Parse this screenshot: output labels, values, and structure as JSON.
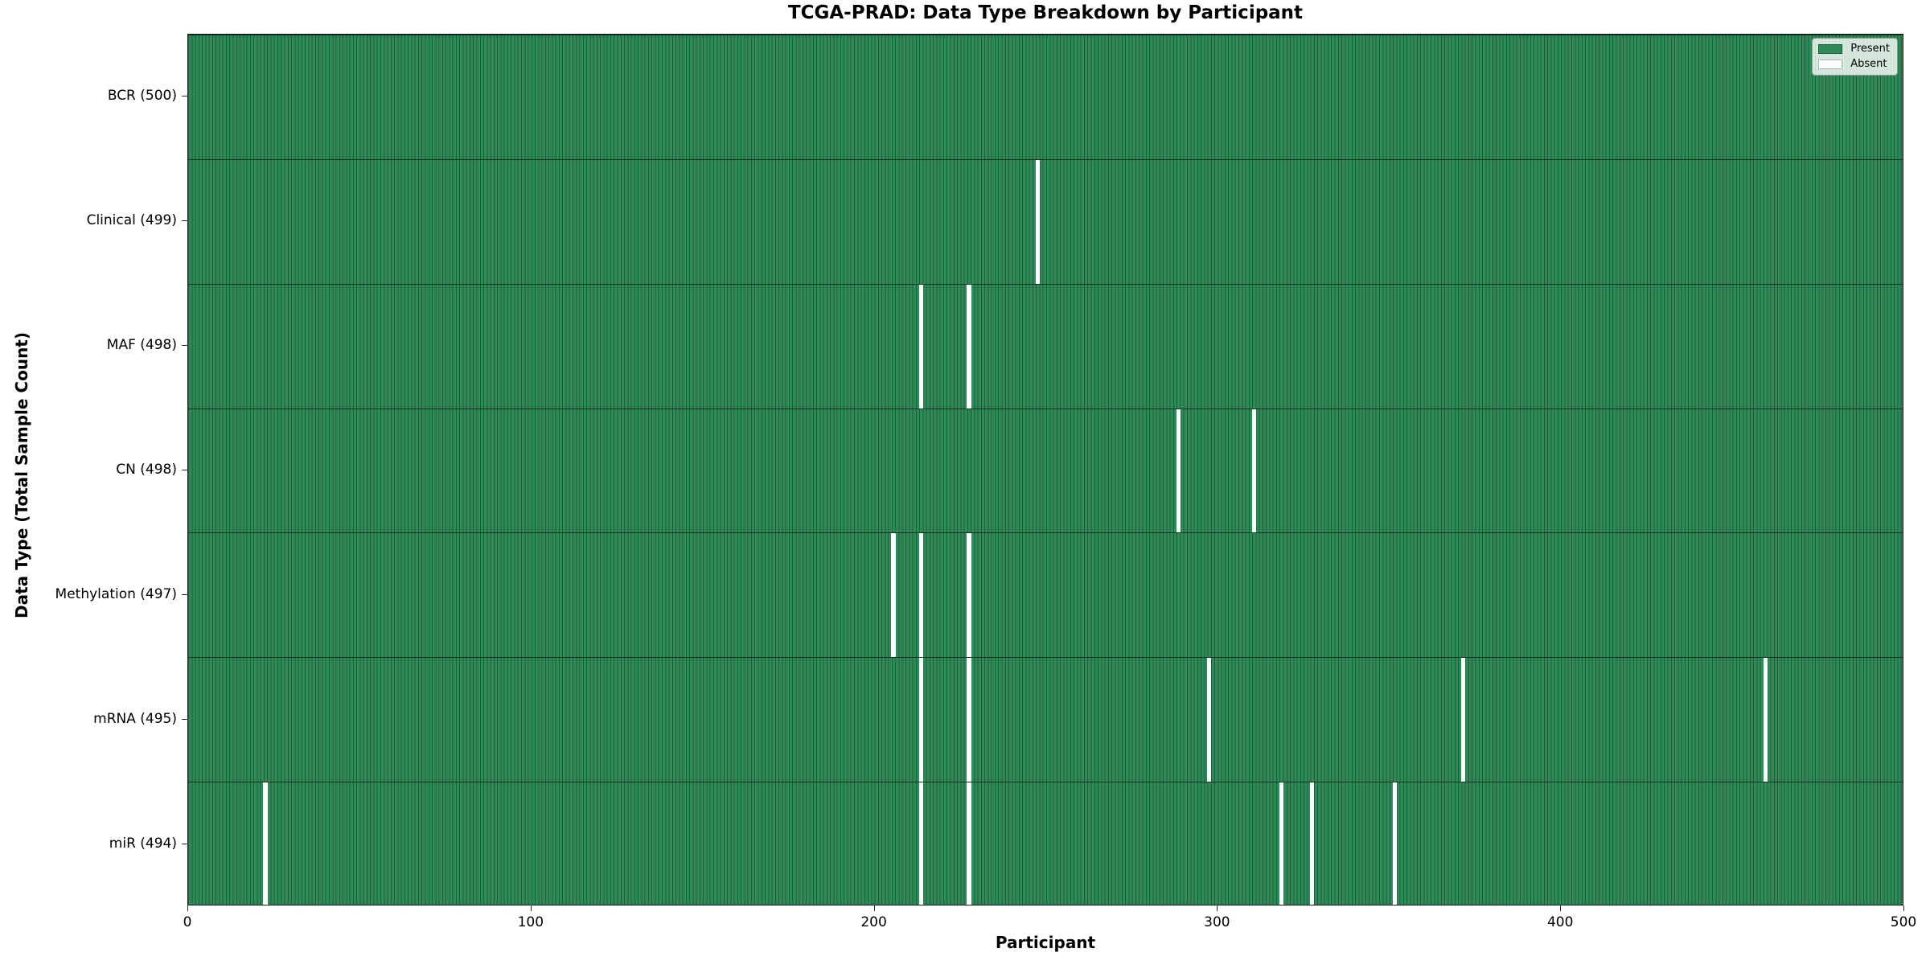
{
  "title": "TCGA-PRAD: Data Type Breakdown by Participant",
  "axes": {
    "x_label": "Participant",
    "y_label": "Data Type (Total Sample Count)"
  },
  "legend": {
    "items": [
      {
        "label": "Present",
        "color": "#2e8b57"
      },
      {
        "label": "Absent",
        "color": "#ffffff"
      }
    ]
  },
  "colors": {
    "present": "#2e8b57",
    "bar_edge": "#1d5c3a",
    "absent": "#ffffff",
    "row_boundary": "#143626",
    "axis": "#1a1a1a"
  },
  "chart_data": {
    "type": "heatmap",
    "title": "TCGA-PRAD: Data Type Breakdown by Participant",
    "xlabel": "Participant",
    "ylabel": "Data Type (Total Sample Count)",
    "legend": [
      "Present",
      "Absent"
    ],
    "legend_position": "upper right",
    "x_range": [
      0,
      500
    ],
    "x_ticks": [
      0,
      100,
      200,
      300,
      400,
      500
    ],
    "n_participants": 500,
    "grid": false,
    "rows": [
      {
        "label": "BCR (500)",
        "data_type": "BCR",
        "total": 500,
        "absent_participants": []
      },
      {
        "label": "Clinical (499)",
        "data_type": "Clinical",
        "total": 499,
        "absent_participants": [
          247
        ]
      },
      {
        "label": "MAF (498)",
        "data_type": "MAF",
        "total": 498,
        "absent_participants": [
          213,
          227
        ]
      },
      {
        "label": "CN (498)",
        "data_type": "CN",
        "total": 498,
        "absent_participants": [
          288,
          310
        ]
      },
      {
        "label": "Methylation (497)",
        "data_type": "Methylation",
        "total": 497,
        "absent_participants": [
          205,
          213,
          227
        ]
      },
      {
        "label": "mRNA (495)",
        "data_type": "mRNA",
        "total": 495,
        "absent_participants": [
          213,
          227,
          297,
          371,
          459
        ]
      },
      {
        "label": "miR (494)",
        "data_type": "miR",
        "total": 494,
        "absent_participants": [
          22,
          213,
          227,
          318,
          327,
          351
        ]
      }
    ]
  }
}
